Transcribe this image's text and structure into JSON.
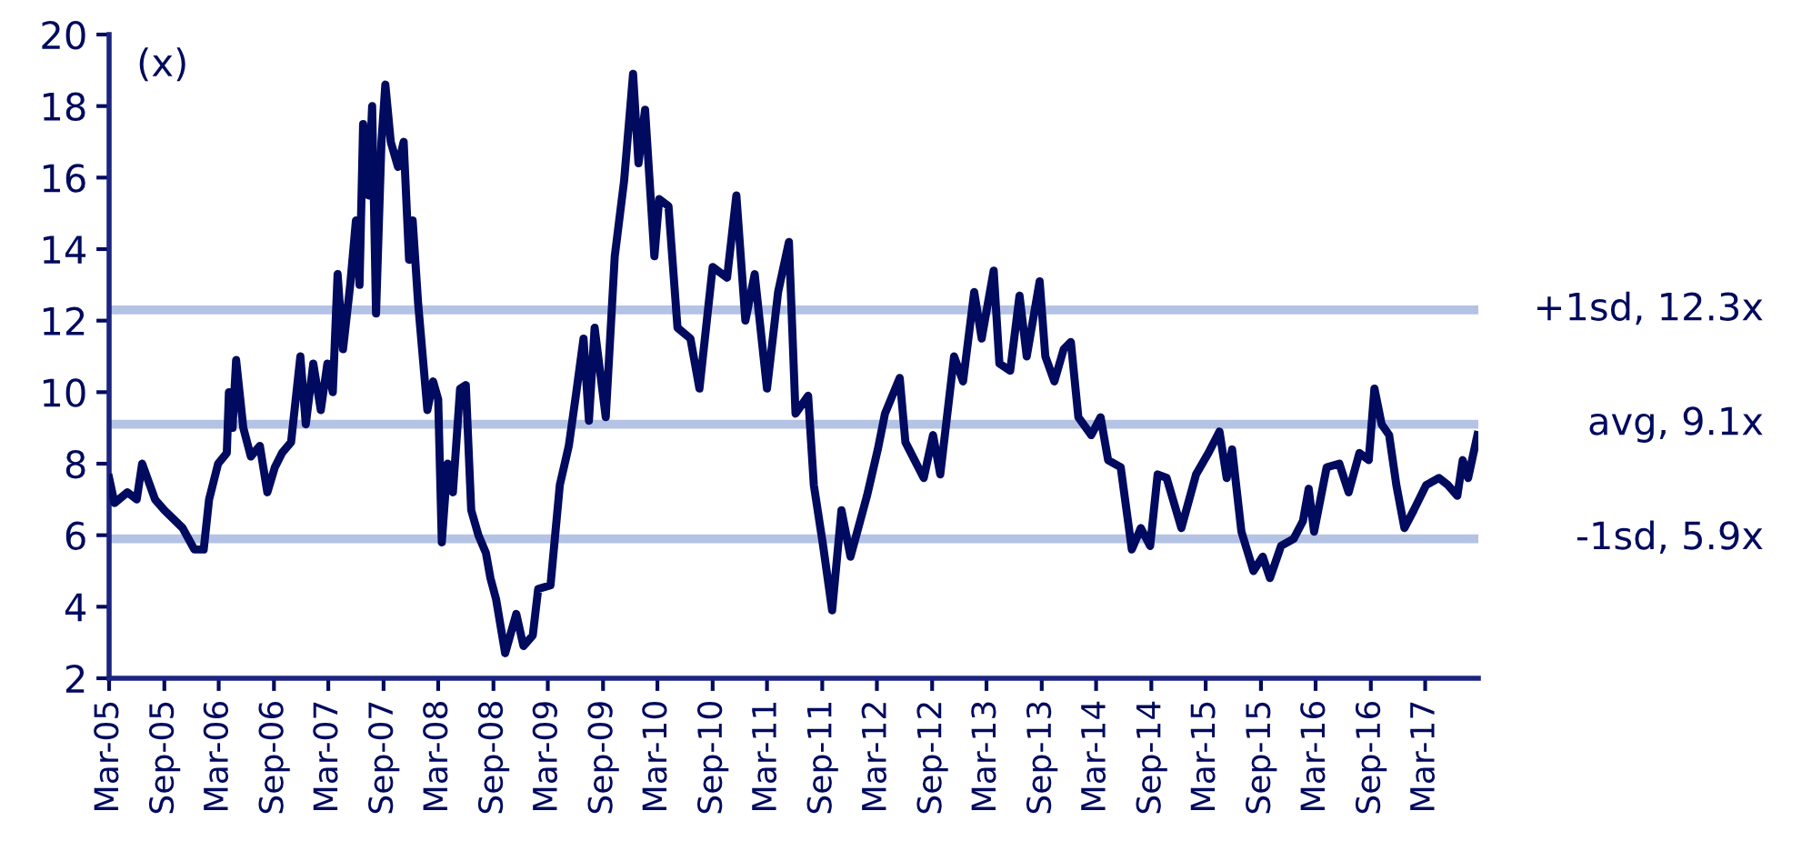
{
  "chart_data": {
    "type": "line",
    "annotations": [
      "(x)"
    ],
    "x": [
      "2005-03-01",
      "2005-03-19",
      "2005-05-01",
      "2005-06-01",
      "2005-06-19",
      "2005-08-01",
      "2005-09-01",
      "2005-11-01",
      "2005-12-10",
      "2006-01-10",
      "2006-01-28",
      "2006-02-27",
      "2006-03-28",
      "2006-04-04",
      "2006-04-16",
      "2006-04-28",
      "2006-05-22",
      "2006-06-16",
      "2006-07-16",
      "2006-08-10",
      "2006-09-04",
      "2006-09-28",
      "2006-10-28",
      "2006-11-28",
      "2006-12-16",
      "2007-01-10",
      "2007-02-04",
      "2007-02-26",
      "2007-03-16",
      "2007-04-01",
      "2007-04-19",
      "2007-05-13",
      "2007-06-01",
      "2007-06-13",
      "2007-06-25",
      "2007-07-13",
      "2007-07-25",
      "2007-08-07",
      "2007-08-25",
      "2007-09-07",
      "2007-09-25",
      "2007-10-19",
      "2007-11-07",
      "2007-11-25",
      "2007-12-07",
      "2007-12-25",
      "2008-01-25",
      "2008-02-13",
      "2008-03-01",
      "2008-03-13",
      "2008-04-01",
      "2008-04-19",
      "2008-05-13",
      "2008-06-01",
      "2008-06-19",
      "2008-07-13",
      "2008-08-07",
      "2008-08-22",
      "2008-09-10",
      "2008-10-10",
      "2008-11-16",
      "2008-12-10",
      "2009-01-10",
      "2009-01-28",
      "2009-03-10",
      "2009-04-10",
      "2009-05-10",
      "2009-06-04",
      "2009-06-28",
      "2009-07-16",
      "2009-08-04",
      "2009-09-10",
      "2009-10-10",
      "2009-11-10",
      "2009-12-10",
      "2009-12-28",
      "2010-01-19",
      "2010-02-19",
      "2010-03-07",
      "2010-04-07",
      "2010-05-07",
      "2010-06-19",
      "2010-07-19",
      "2010-09-01",
      "2010-10-19",
      "2010-11-19",
      "2010-12-19",
      "2011-01-19",
      "2011-03-01",
      "2011-04-07",
      "2011-05-13",
      "2011-06-04",
      "2011-07-16",
      "2011-08-04",
      "2011-09-04",
      "2011-10-04",
      "2011-11-04",
      "2011-12-04",
      "2012-01-28",
      "2012-03-04",
      "2012-03-28",
      "2012-05-16",
      "2012-06-04",
      "2012-08-04",
      "2012-09-04",
      "2012-09-28",
      "2012-11-13",
      "2012-12-13",
      "2013-01-19",
      "2013-02-13",
      "2013-03-25",
      "2013-04-13",
      "2013-05-19",
      "2013-06-19",
      "2013-07-13",
      "2013-08-25",
      "2013-09-13",
      "2013-10-13",
      "2013-11-13",
      "2013-12-07",
      "2014-01-01",
      "2014-02-13",
      "2014-03-16",
      "2014-04-10",
      "2014-05-22",
      "2014-06-28",
      "2014-07-28",
      "2014-08-28",
      "2014-09-22",
      "2014-10-22",
      "2014-12-10",
      "2015-01-28",
      "2015-03-10",
      "2015-04-16",
      "2015-05-10",
      "2015-05-28",
      "2015-06-28",
      "2015-08-07",
      "2015-09-07",
      "2015-10-01",
      "2015-11-07",
      "2015-12-19",
      "2016-01-19",
      "2016-02-07",
      "2016-02-25",
      "2016-04-07",
      "2016-05-19",
      "2016-06-19",
      "2016-07-25",
      "2016-08-25",
      "2016-09-13",
      "2016-10-07",
      "2016-11-01",
      "2016-11-25",
      "2016-12-22",
      "2017-01-22",
      "2017-03-04",
      "2017-04-16",
      "2017-05-16",
      "2017-06-16",
      "2017-07-04",
      "2017-07-22",
      "2017-08-22"
    ],
    "series": [
      {
        "color": "#000a5e",
        "values": [
          7.6,
          6.9,
          7.2,
          7.0,
          8.0,
          7.0,
          6.7,
          6.2,
          5.6,
          5.6,
          7.0,
          8.0,
          8.3,
          10.0,
          9.0,
          10.9,
          9.0,
          8.2,
          8.5,
          7.2,
          7.9,
          8.3,
          8.6,
          11.0,
          9.1,
          10.8,
          9.5,
          10.8,
          10.0,
          13.3,
          11.2,
          13.0,
          14.8,
          13.0,
          17.5,
          15.5,
          18.0,
          12.2,
          17.0,
          18.6,
          17.0,
          16.3,
          17.0,
          13.7,
          14.8,
          12.5,
          9.5,
          10.3,
          9.8,
          5.8,
          8.0,
          7.2,
          10.1,
          10.2,
          6.7,
          6.0,
          5.5,
          4.8,
          4.2,
          2.7,
          3.8,
          2.9,
          3.2,
          4.5,
          4.6,
          7.4,
          8.5,
          10.0,
          11.5,
          9.2,
          11.8,
          9.3,
          13.8,
          15.9,
          18.9,
          16.4,
          17.9,
          13.8,
          15.4,
          15.2,
          11.8,
          11.5,
          10.1,
          13.5,
          13.2,
          15.5,
          12.0,
          13.3,
          10.1,
          12.8,
          14.2,
          9.4,
          9.9,
          7.4,
          5.7,
          3.9,
          6.7,
          5.4,
          7.1,
          8.4,
          9.4,
          10.4,
          8.6,
          7.6,
          8.8,
          7.7,
          11.0,
          10.3,
          12.8,
          11.5,
          13.4,
          10.8,
          10.6,
          12.7,
          11.0,
          13.1,
          11.0,
          10.3,
          11.2,
          11.4,
          9.3,
          8.8,
          9.3,
          8.1,
          7.9,
          5.6,
          6.2,
          5.7,
          7.7,
          7.6,
          6.2,
          7.7,
          8.3,
          8.9,
          7.6,
          8.4,
          6.1,
          5.0,
          5.4,
          4.8,
          5.7,
          5.9,
          6.4,
          7.3,
          6.1,
          7.9,
          8.0,
          7.2,
          8.3,
          8.1,
          10.1,
          9.1,
          8.8,
          7.4,
          6.2,
          6.7,
          7.4,
          7.6,
          7.4,
          7.1,
          8.1,
          7.6,
          8.8
        ]
      }
    ],
    "xlim": [
      "2005-03-01",
      "2017-08-25"
    ],
    "xticks": [
      {
        "value": "2005-03-01",
        "label": "Mar-05"
      },
      {
        "value": "2005-09-01",
        "label": "Sep-05"
      },
      {
        "value": "2006-03-01",
        "label": "Mar-06"
      },
      {
        "value": "2006-09-01",
        "label": "Sep-06"
      },
      {
        "value": "2007-03-01",
        "label": "Mar-07"
      },
      {
        "value": "2007-09-01",
        "label": "Sep-07"
      },
      {
        "value": "2008-03-01",
        "label": "Mar-08"
      },
      {
        "value": "2008-09-01",
        "label": "Sep-08"
      },
      {
        "value": "2009-03-01",
        "label": "Mar-09"
      },
      {
        "value": "2009-09-01",
        "label": "Sep-09"
      },
      {
        "value": "2010-03-01",
        "label": "Mar-10"
      },
      {
        "value": "2010-09-01",
        "label": "Sep-10"
      },
      {
        "value": "2011-03-01",
        "label": "Mar-11"
      },
      {
        "value": "2011-09-01",
        "label": "Sep-11"
      },
      {
        "value": "2012-03-01",
        "label": "Mar-12"
      },
      {
        "value": "2012-09-01",
        "label": "Sep-12"
      },
      {
        "value": "2013-03-01",
        "label": "Mar-13"
      },
      {
        "value": "2013-09-01",
        "label": "Sep-13"
      },
      {
        "value": "2014-03-01",
        "label": "Mar-14"
      },
      {
        "value": "2014-09-01",
        "label": "Sep-14"
      },
      {
        "value": "2015-03-01",
        "label": "Mar-15"
      },
      {
        "value": "2015-09-01",
        "label": "Sep-15"
      },
      {
        "value": "2016-03-01",
        "label": "Mar-16"
      },
      {
        "value": "2016-09-01",
        "label": "Sep-16"
      },
      {
        "value": "2017-03-01",
        "label": "Mar-17"
      }
    ],
    "ylim": [
      2,
      20
    ],
    "yticks": [
      2,
      4,
      6,
      8,
      10,
      12,
      14,
      16,
      18,
      20
    ],
    "ref_lines": [
      {
        "axis": "y",
        "value": 12.3,
        "label": "+1sd, 12.3x",
        "color": "#b4c3e4"
      },
      {
        "axis": "y",
        "value": 9.1,
        "label": "avg, 9.1x",
        "color": "#b4c3e4"
      },
      {
        "axis": "y",
        "value": 5.9,
        "label": "-1sd, 5.9x",
        "color": "#b4c3e4"
      }
    ],
    "grid": false,
    "legend": false,
    "marker": "none",
    "line_style": "solid"
  }
}
